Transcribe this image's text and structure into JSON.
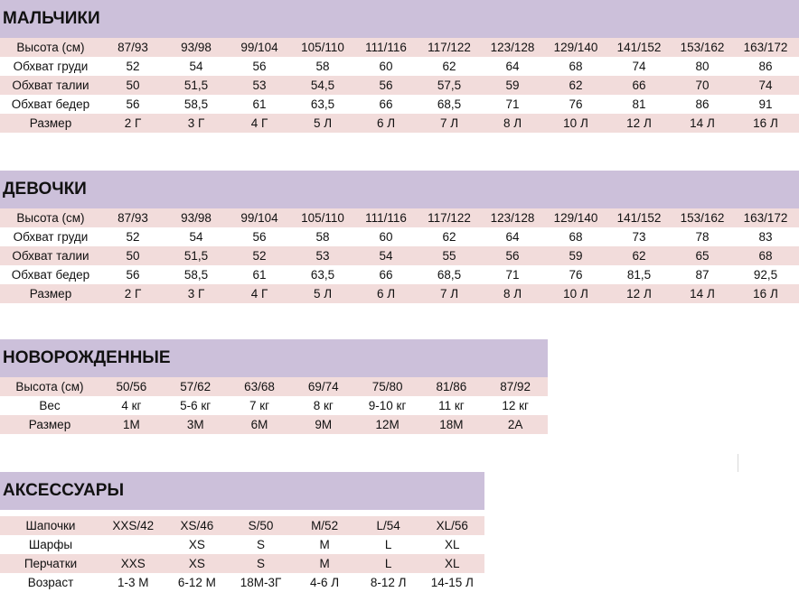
{
  "boys": {
    "title": "МАЛЬЧИКИ",
    "rows": [
      {
        "label": "Высота (см)",
        "values": [
          "87/93",
          "93/98",
          "99/104",
          "105/110",
          "111/116",
          "117/122",
          "123/128",
          "129/140",
          "141/152",
          "153/162",
          "163/172"
        ]
      },
      {
        "label": "Обхват груди",
        "values": [
          "52",
          "54",
          "56",
          "58",
          "60",
          "62",
          "64",
          "68",
          "74",
          "80",
          "86"
        ]
      },
      {
        "label": "Обхват талии",
        "values": [
          "50",
          "51,5",
          "53",
          "54,5",
          "56",
          "57,5",
          "59",
          "62",
          "66",
          "70",
          "74"
        ]
      },
      {
        "label": "Обхват бедер",
        "values": [
          "56",
          "58,5",
          "61",
          "63,5",
          "66",
          "68,5",
          "71",
          "76",
          "81",
          "86",
          "91"
        ]
      },
      {
        "label": "Размер",
        "values": [
          "2 Г",
          "3 Г",
          "4 Г",
          "5 Л",
          "6 Л",
          "7 Л",
          "8 Л",
          "10 Л",
          "12 Л",
          "14 Л",
          "16 Л"
        ]
      }
    ]
  },
  "girls": {
    "title": "ДЕВОЧКИ",
    "rows": [
      {
        "label": "Высота (см)",
        "values": [
          "87/93",
          "93/98",
          "99/104",
          "105/110",
          "111/116",
          "117/122",
          "123/128",
          "129/140",
          "141/152",
          "153/162",
          "163/172"
        ]
      },
      {
        "label": "Обхват груди",
        "values": [
          "52",
          "54",
          "56",
          "58",
          "60",
          "62",
          "64",
          "68",
          "73",
          "78",
          "83"
        ]
      },
      {
        "label": "Обхват талии",
        "values": [
          "50",
          "51,5",
          "52",
          "53",
          "54",
          "55",
          "56",
          "59",
          "62",
          "65",
          "68"
        ]
      },
      {
        "label": "Обхват бедер",
        "values": [
          "56",
          "58,5",
          "61",
          "63,5",
          "66",
          "68,5",
          "71",
          "76",
          "81,5",
          "87",
          "92,5"
        ]
      },
      {
        "label": "Размер",
        "values": [
          "2 Г",
          "3 Г",
          "4 Г",
          "5 Л",
          "6 Л",
          "7 Л",
          "8 Л",
          "10 Л",
          "12 Л",
          "14 Л",
          "16 Л"
        ]
      }
    ]
  },
  "newborns": {
    "title": "НОВОРОЖДЕННЫЕ",
    "rows": [
      {
        "label": "Высота (см)",
        "values": [
          "50/56",
          "57/62",
          "63/68",
          "69/74",
          "75/80",
          "81/86",
          "87/92"
        ]
      },
      {
        "label": "Вес",
        "values": [
          "4 кг",
          "5-6 кг",
          "7 кг",
          "8 кг",
          "9-10 кг",
          "11 кг",
          "12 кг"
        ]
      },
      {
        "label": "Размер",
        "values": [
          "1M",
          "3M",
          "6M",
          "9M",
          "12M",
          "18M",
          "2A"
        ]
      }
    ]
  },
  "accessories": {
    "title": "АКСЕССУАРЫ",
    "rows": [
      {
        "label": "Шапочки",
        "values": [
          "XXS/42",
          "XS/46",
          "S/50",
          "M/52",
          "L/54",
          "XL/56"
        ]
      },
      {
        "label": "Шарфы",
        "values": [
          "",
          "XS",
          "S",
          "M",
          "L",
          "XL"
        ]
      },
      {
        "label": "Перчатки",
        "values": [
          "XXS",
          "XS",
          "S",
          "M",
          "L",
          "XL"
        ]
      },
      {
        "label": "Возраст",
        "values": [
          "1-3 М",
          "6-12 М",
          "18М-3Г",
          "4-6 Л",
          "8-12 Л",
          "14-15 Л"
        ]
      }
    ]
  }
}
